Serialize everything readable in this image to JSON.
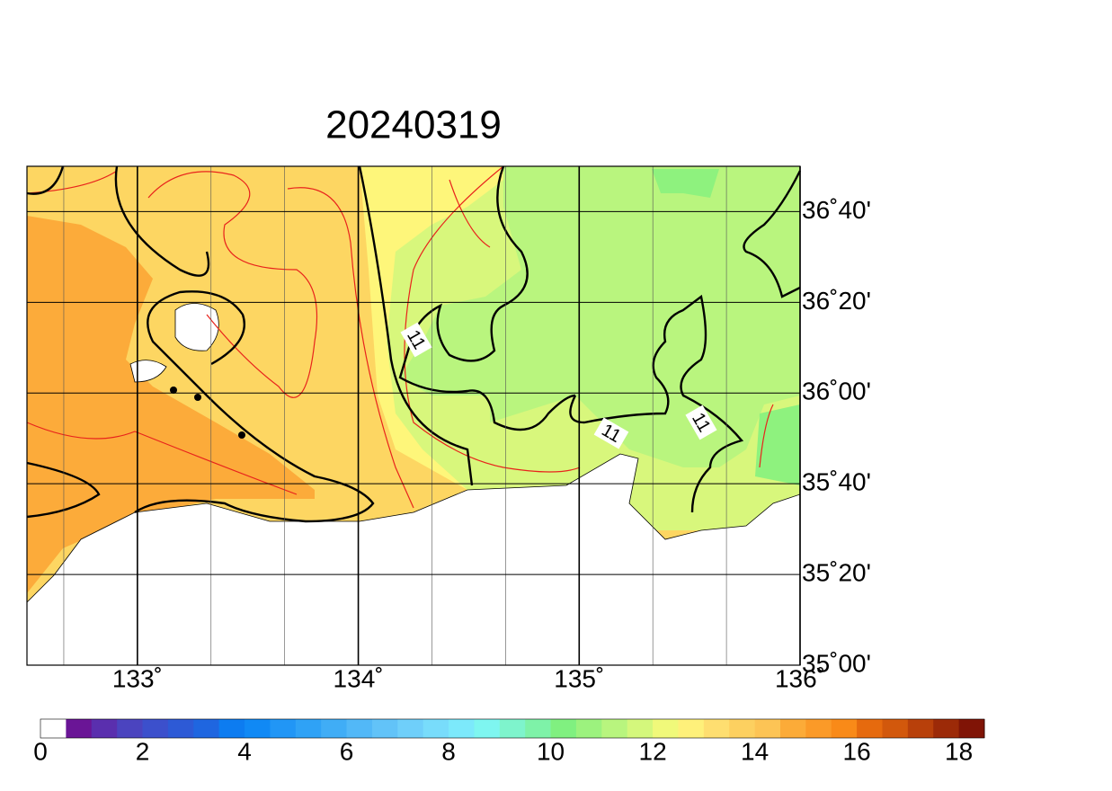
{
  "map": {
    "title": "20240319",
    "lon_range": [
      132.5,
      136
    ],
    "lat_range": [
      35,
      36.8333
    ],
    "lon_ticks": [
      {
        "value": 133,
        "label": "133˚"
      },
      {
        "value": 134,
        "label": "134˚"
      },
      {
        "value": 135,
        "label": "135˚"
      },
      {
        "value": 136,
        "label": "136˚"
      }
    ],
    "lat_ticks": [
      {
        "value": 35,
        "label": "35˚00'"
      },
      {
        "value": 35.3333,
        "label": "35˚20'"
      },
      {
        "value": 35.6667,
        "label": "35˚40'"
      },
      {
        "value": 36,
        "label": "36˚00'"
      },
      {
        "value": 36.3333,
        "label": "36˚20'"
      },
      {
        "value": 36.6667,
        "label": "36˚40'"
      }
    ],
    "contour_labels": [
      "11",
      "11",
      "11"
    ]
  },
  "colorbar": {
    "min": 0,
    "max": 18.5,
    "ticks": [
      0,
      2,
      4,
      6,
      8,
      10,
      12,
      14,
      16,
      18
    ],
    "colors": [
      "#ffffff",
      "#6a1596",
      "#5a2fae",
      "#4b44bf",
      "#3c50cc",
      "#2d5ad6",
      "#1f66e0",
      "#0d7cf0",
      "#1089f5",
      "#2196f6",
      "#2fa2f6",
      "#40adf6",
      "#52b8f7",
      "#62c3f8",
      "#6fcffa",
      "#78dcfb",
      "#7ce9fb",
      "#7ef6f0",
      "#7ef4cc",
      "#7ef2a8",
      "#80f080",
      "#9cf27e",
      "#b8f57e",
      "#d4f77c",
      "#f0f97a",
      "#fef07a",
      "#fede70",
      "#fdd060",
      "#fdc455",
      "#fcab38",
      "#fb9a28",
      "#f98a18",
      "#e66a0e",
      "#d2580c",
      "#b8400a",
      "#9c2a08",
      "#801406"
    ]
  }
}
